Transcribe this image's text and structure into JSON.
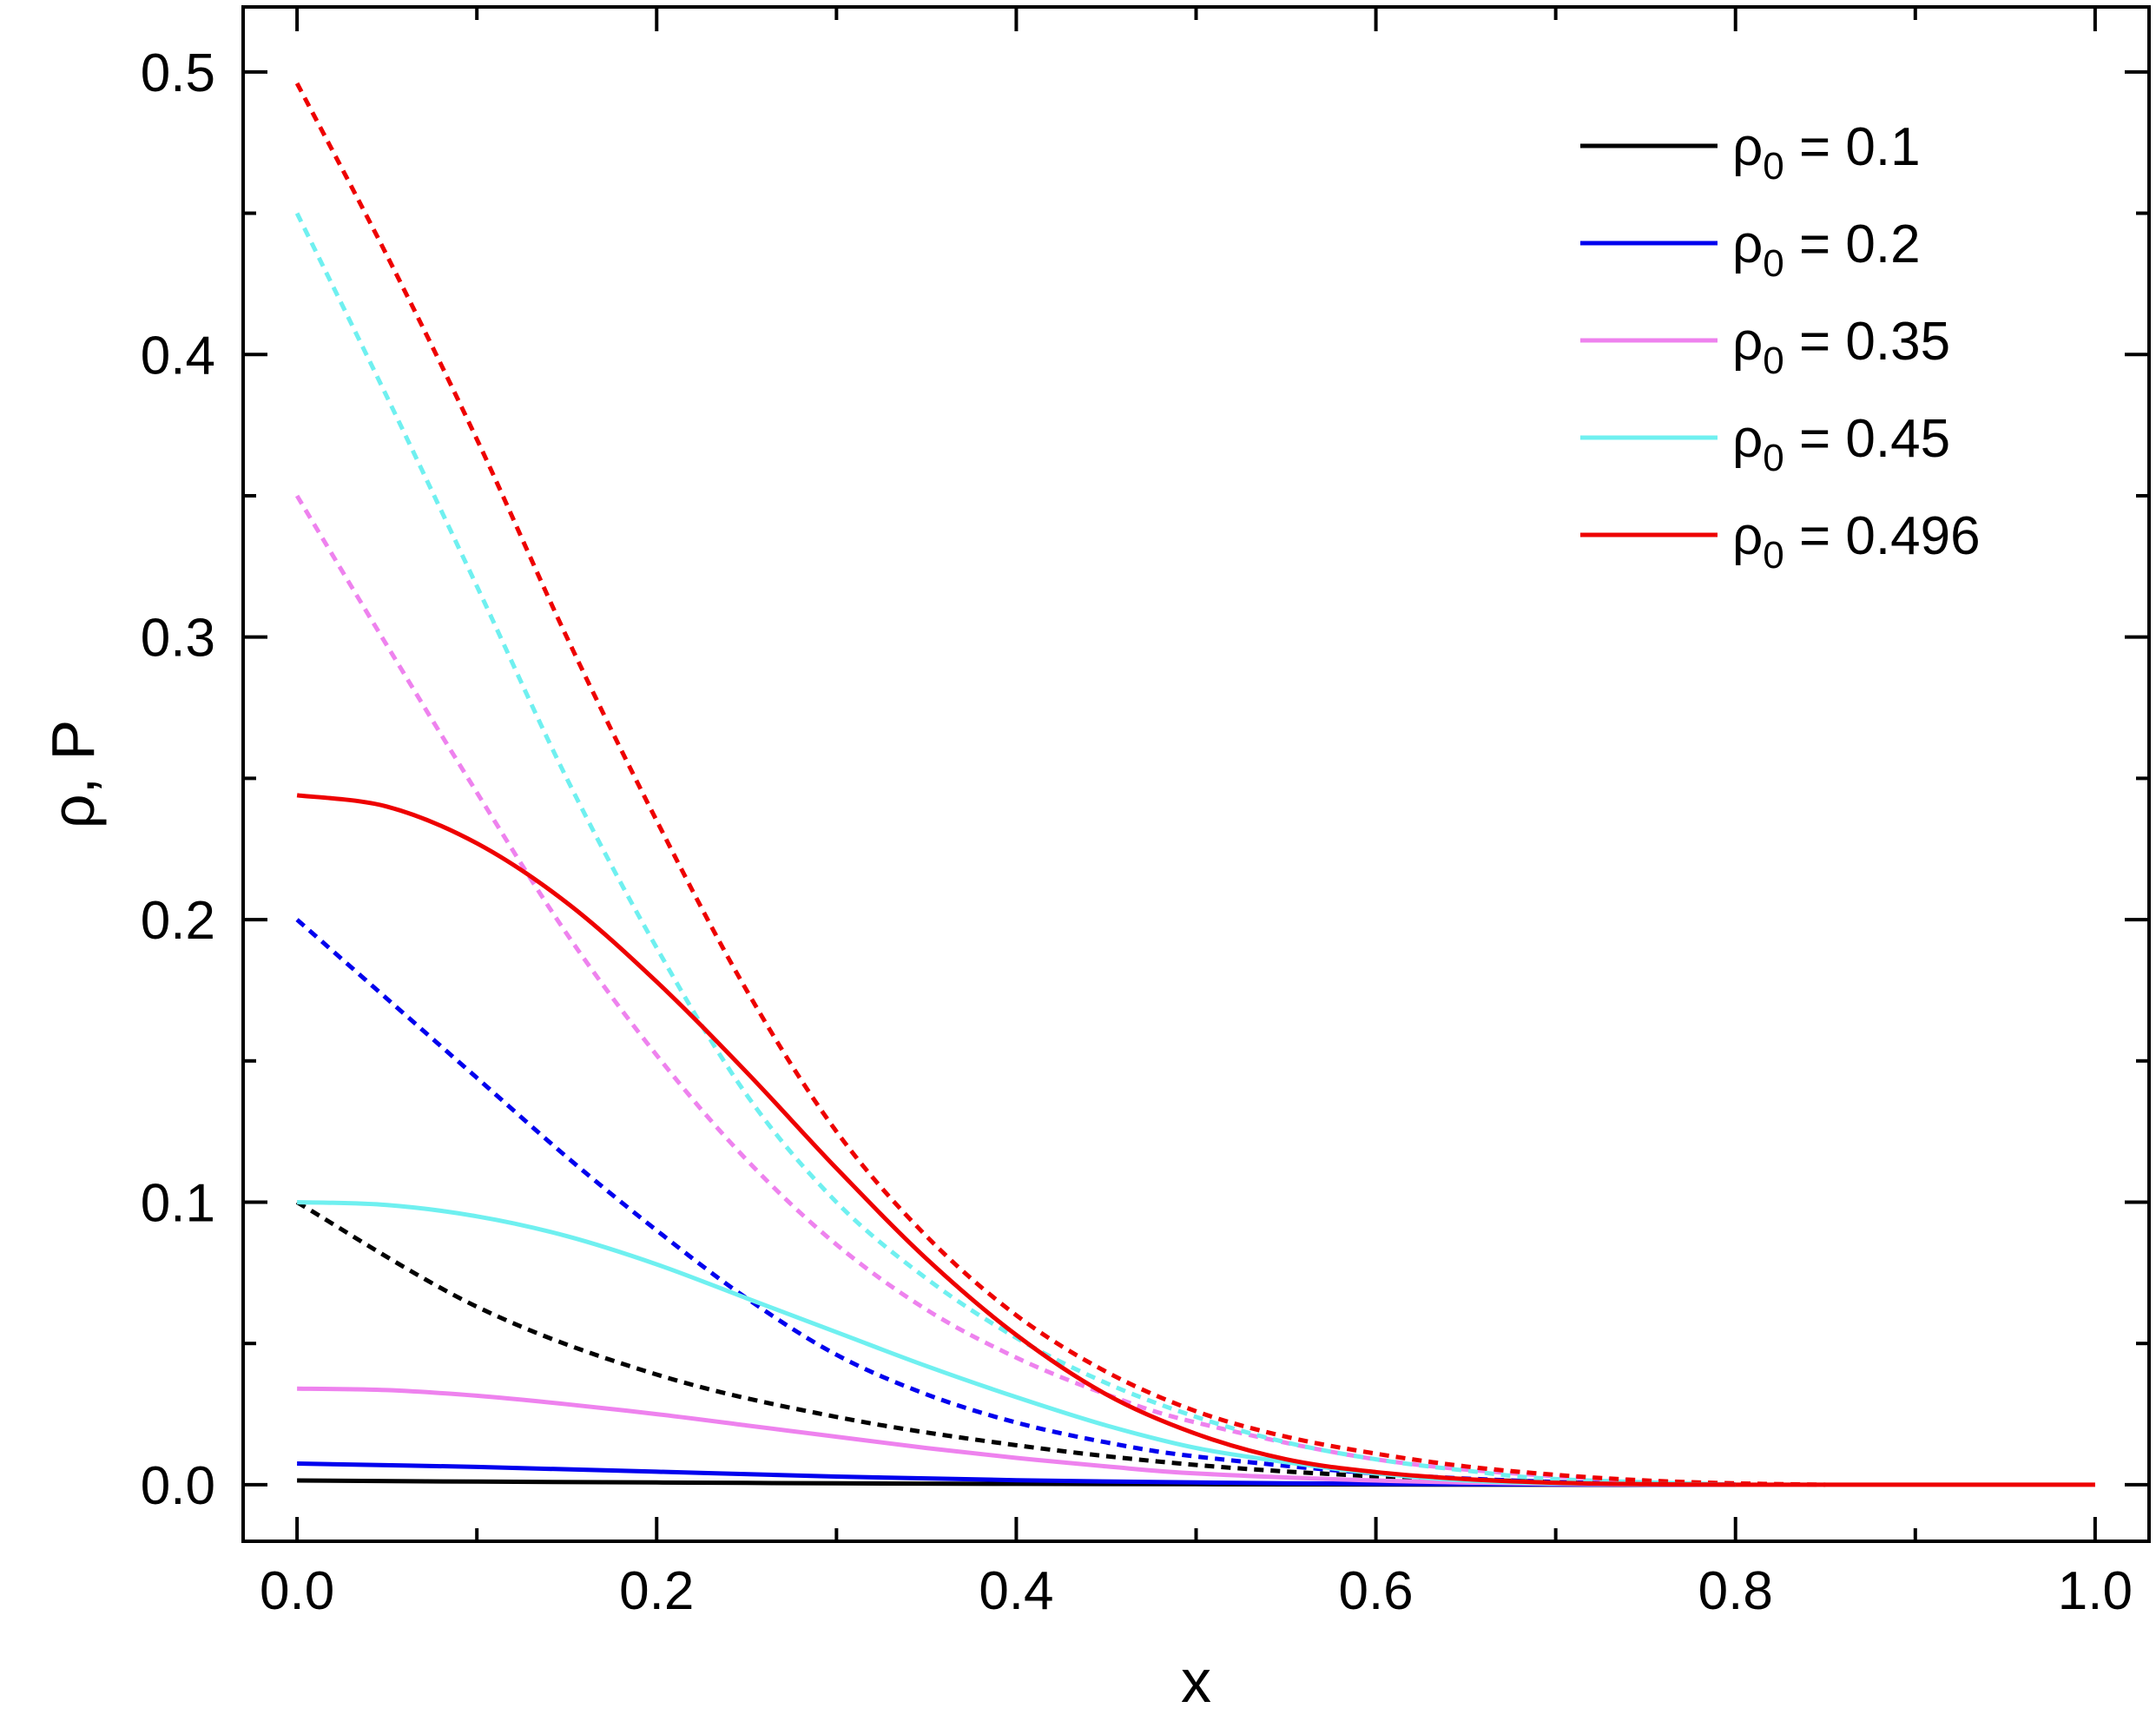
{
  "chart_data": {
    "type": "line",
    "xlabel": "x",
    "ylabel": "ρ, P",
    "xlim": [
      -0.03,
      1.03
    ],
    "ylim": [
      -0.02,
      0.523
    ],
    "x_ticks": [
      0.0,
      0.2,
      0.4,
      0.6,
      0.8,
      1.0
    ],
    "x_tick_labels": [
      "0.0",
      "0.2",
      "0.4",
      "0.6",
      "0.8",
      "1.0"
    ],
    "y_ticks": [
      0.0,
      0.1,
      0.2,
      0.3,
      0.4,
      0.5
    ],
    "y_tick_labels": [
      "0.0",
      "0.1",
      "0.2",
      "0.3",
      "0.4",
      "0.5"
    ],
    "grid": false,
    "legend_position": "top-right",
    "series": [
      {
        "name": "ρ0 = 0.1",
        "legend_prefix": "ρ",
        "legend_sub": "0",
        "legend_value": " = 0.1",
        "color": "#000000",
        "solid": {
          "x": [
            0,
            0.1,
            0.2,
            0.3,
            0.4,
            0.5,
            0.6,
            0.7,
            0.8
          ],
          "y": [
            0.0015,
            0.0011,
            0.0008,
            0.0005,
            0.0003,
            0.0002,
            0.0001,
            0.0,
            0.0
          ]
        },
        "dashed": {
          "x": [
            0,
            0.1,
            0.2,
            0.3,
            0.4,
            0.5,
            0.6,
            0.7,
            0.8
          ],
          "y": [
            0.1,
            0.063,
            0.039,
            0.024,
            0.014,
            0.007,
            0.003,
            0.001,
            0.0
          ]
        }
      },
      {
        "name": "ρ0 = 0.2",
        "legend_prefix": "ρ",
        "legend_sub": "0",
        "legend_value": " = 0.2",
        "color": "#0000ee",
        "solid": {
          "x": [
            0,
            0.1,
            0.2,
            0.3,
            0.4,
            0.5,
            0.6,
            0.7,
            0.8
          ],
          "y": [
            0.0075,
            0.0063,
            0.0046,
            0.0029,
            0.0016,
            0.0008,
            0.0003,
            0.0001,
            0.0
          ]
        },
        "dashed": {
          "x": [
            0,
            0.05,
            0.1,
            0.15,
            0.2,
            0.25,
            0.3,
            0.35,
            0.4,
            0.45,
            0.5,
            0.6,
            0.7,
            0.8
          ],
          "y": [
            0.2,
            0.172,
            0.144,
            0.116,
            0.09,
            0.066,
            0.046,
            0.032,
            0.022,
            0.015,
            0.01,
            0.004,
            0.001,
            0.0
          ]
        }
      },
      {
        "name": "ρ0 = 0.35",
        "legend_prefix": "ρ",
        "legend_sub": "0",
        "legend_value": " = 0.35",
        "color": "#ee82ee",
        "solid": {
          "x": [
            0,
            0.05,
            0.1,
            0.15,
            0.2,
            0.25,
            0.3,
            0.35,
            0.4,
            0.45,
            0.5,
            0.6,
            0.7,
            0.8
          ],
          "y": [
            0.034,
            0.0335,
            0.0315,
            0.0285,
            0.025,
            0.021,
            0.017,
            0.013,
            0.0095,
            0.0065,
            0.004,
            0.0015,
            0.0003,
            0.0
          ]
        },
        "dashed": {
          "x": [
            0,
            0.05,
            0.1,
            0.15,
            0.2,
            0.25,
            0.3,
            0.35,
            0.4,
            0.45,
            0.5,
            0.6,
            0.7,
            0.8
          ],
          "y": [
            0.35,
            0.297,
            0.245,
            0.195,
            0.152,
            0.115,
            0.085,
            0.062,
            0.045,
            0.032,
            0.022,
            0.009,
            0.003,
            0.0
          ]
        }
      },
      {
        "name": "ρ0 = 0.45",
        "legend_prefix": "ρ",
        "legend_sub": "0",
        "legend_value": " = 0.45",
        "color": "#6ff0f0",
        "solid": {
          "x": [
            0,
            0.05,
            0.1,
            0.15,
            0.2,
            0.25,
            0.3,
            0.35,
            0.4,
            0.45,
            0.5,
            0.55,
            0.6,
            0.65,
            0.7,
            0.8
          ],
          "y": [
            0.1,
            0.099,
            0.095,
            0.088,
            0.078,
            0.066,
            0.054,
            0.042,
            0.031,
            0.021,
            0.013,
            0.008,
            0.004,
            0.0015,
            0.0005,
            0.0
          ]
        },
        "dashed": {
          "x": [
            0,
            0.05,
            0.1,
            0.15,
            0.2,
            0.25,
            0.3,
            0.35,
            0.4,
            0.45,
            0.5,
            0.55,
            0.6,
            0.65,
            0.7,
            0.8
          ],
          "y": [
            0.45,
            0.385,
            0.318,
            0.25,
            0.19,
            0.138,
            0.1,
            0.073,
            0.052,
            0.036,
            0.024,
            0.015,
            0.009,
            0.005,
            0.002,
            0.0
          ]
        }
      },
      {
        "name": "ρ0 = 0.496",
        "legend_prefix": "ρ",
        "legend_sub": "0",
        "legend_value": " = 0.496",
        "color": "#ee0000",
        "solid": {
          "x": [
            0,
            0.05,
            0.1,
            0.15,
            0.2,
            0.25,
            0.3,
            0.35,
            0.4,
            0.45,
            0.5,
            0.55,
            0.6,
            0.65,
            0.7,
            0.75,
            0.8
          ],
          "y": [
            0.244,
            0.24,
            0.227,
            0.206,
            0.178,
            0.146,
            0.112,
            0.08,
            0.053,
            0.032,
            0.018,
            0.009,
            0.0045,
            0.002,
            0.0007,
            0.0002,
            0.0
          ]
        },
        "dashed": {
          "x": [
            0,
            0.05,
            0.1,
            0.15,
            0.2,
            0.25,
            0.3,
            0.35,
            0.4,
            0.45,
            0.5,
            0.55,
            0.6,
            0.65,
            0.7,
            0.75,
            0.8,
            0.85
          ],
          "y": [
            0.496,
            0.435,
            0.37,
            0.3,
            0.235,
            0.175,
            0.125,
            0.088,
            0.06,
            0.04,
            0.026,
            0.017,
            0.011,
            0.0065,
            0.0035,
            0.0015,
            0.0005,
            0.0
          ]
        }
      }
    ],
    "baseline": {
      "x": [
        0.8,
        1.0
      ],
      "y": [
        0.0,
        0.0
      ]
    }
  }
}
